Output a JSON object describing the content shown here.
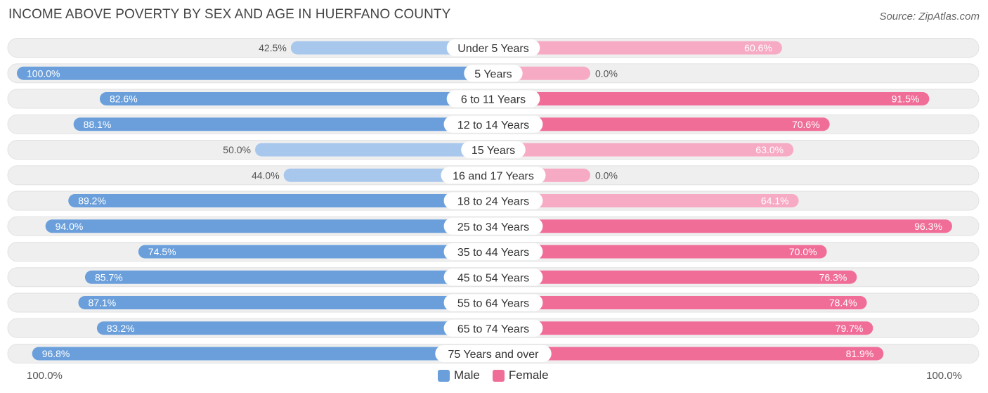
{
  "header": {
    "title": "INCOME ABOVE POVERTY BY SEX AND AGE IN HUERFANO COUNTY",
    "source": "Source: ZipAtlas.com"
  },
  "colors": {
    "male_strong": "#6a9fdb",
    "male_light": "#a8c7ec",
    "female_strong": "#f06d98",
    "female_light": "#f7aac3",
    "row_bg": "#efefef"
  },
  "axis": {
    "left_label": "100.0%",
    "right_label": "100.0%"
  },
  "legend": {
    "male": "Male",
    "female": "Female"
  },
  "chart_data": {
    "type": "bar",
    "orientation": "horizontal-diverging",
    "title": "INCOME ABOVE POVERTY BY SEX AND AGE IN HUERFANO COUNTY",
    "unit": "%",
    "xlim": [
      0,
      100
    ],
    "categories": [
      "Under 5 Years",
      "5 Years",
      "6 to 11 Years",
      "12 to 14 Years",
      "15 Years",
      "16 and 17 Years",
      "18 to 24 Years",
      "25 to 34 Years",
      "35 to 44 Years",
      "45 to 54 Years",
      "55 to 64 Years",
      "65 to 74 Years",
      "75 Years and over"
    ],
    "series": [
      {
        "name": "Male",
        "values": [
          42.5,
          100.0,
          82.6,
          88.1,
          50.0,
          44.0,
          89.2,
          94.0,
          74.5,
          85.7,
          87.1,
          83.2,
          96.8
        ],
        "labels": [
          "42.5%",
          "100.0%",
          "82.6%",
          "88.1%",
          "50.0%",
          "44.0%",
          "89.2%",
          "94.0%",
          "74.5%",
          "85.7%",
          "87.1%",
          "83.2%",
          "96.8%"
        ]
      },
      {
        "name": "Female",
        "values": [
          60.6,
          0.0,
          91.5,
          70.6,
          63.0,
          0.0,
          64.1,
          96.3,
          70.0,
          76.3,
          78.4,
          79.7,
          81.9
        ],
        "labels": [
          "60.6%",
          "0.0%",
          "91.5%",
          "70.6%",
          "63.0%",
          "0.0%",
          "64.1%",
          "96.3%",
          "70.0%",
          "76.3%",
          "78.4%",
          "79.7%",
          "81.9%"
        ]
      }
    ]
  }
}
